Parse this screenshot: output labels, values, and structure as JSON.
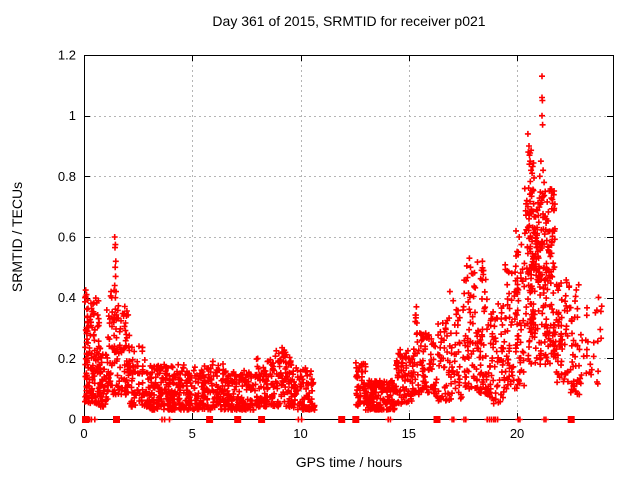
{
  "window": {
    "background": "#ffffff"
  },
  "chart_data": {
    "type": "scatter",
    "title": "Day 361 of 2015, SRMTID for receiver p021",
    "xlabel": "GPS time / hours",
    "ylabel": "SRMTID / TECUs",
    "xlim": [
      0,
      24.43
    ],
    "ylim": [
      0,
      1.2
    ],
    "xticks": [
      {
        "v": 0,
        "label": "0"
      },
      {
        "v": 5,
        "label": "5"
      },
      {
        "v": 10,
        "label": "10"
      },
      {
        "v": 15,
        "label": "15"
      },
      {
        "v": 20,
        "label": "20"
      }
    ],
    "yticks": [
      {
        "v": 0,
        "label": "0"
      },
      {
        "v": 0.2,
        "label": "0.2"
      },
      {
        "v": 0.4,
        "label": "0.4"
      },
      {
        "v": 0.6,
        "label": "0.6"
      },
      {
        "v": 0.8,
        "label": "0.8"
      },
      {
        "v": 1,
        "label": "1"
      },
      {
        "v": 1.2,
        "label": "1.2"
      }
    ],
    "grid": true,
    "legend": "none",
    "marker": "plus",
    "marker_color": "#ff0000",
    "grid_color": "#b5b5b5",
    "axis_color": "#000000",
    "series_name": "SRMTID",
    "notable_points": [
      [
        0.08,
        0.425
      ],
      [
        0.12,
        0.41
      ],
      [
        1.25,
        0.42
      ],
      [
        1.28,
        0.4
      ],
      [
        1.42,
        0.6
      ],
      [
        1.45,
        0.575
      ],
      [
        1.43,
        0.565
      ],
      [
        1.47,
        0.52
      ],
      [
        1.44,
        0.5
      ],
      [
        1.46,
        0.47
      ],
      [
        1.42,
        0.44
      ],
      [
        1.48,
        0.42
      ],
      [
        1.45,
        0.4
      ],
      [
        9.15,
        0.235
      ],
      [
        9.3,
        0.22
      ],
      [
        15.35,
        0.37
      ],
      [
        16.9,
        0.42
      ],
      [
        17.05,
        0.39
      ],
      [
        17.2,
        0.36
      ],
      [
        17.8,
        0.53
      ],
      [
        17.85,
        0.5
      ],
      [
        17.9,
        0.48
      ],
      [
        18.4,
        0.52
      ],
      [
        18.45,
        0.49
      ],
      [
        18.55,
        0.46
      ],
      [
        19.95,
        0.62
      ],
      [
        20.1,
        0.6
      ],
      [
        20.2,
        0.575
      ],
      [
        20.05,
        0.55
      ],
      [
        20.45,
        0.72
      ],
      [
        20.5,
        0.7
      ],
      [
        20.55,
        0.66
      ],
      [
        20.5,
        0.94
      ],
      [
        20.55,
        0.9
      ],
      [
        20.52,
        0.88
      ],
      [
        20.6,
        0.85
      ],
      [
        20.57,
        0.84
      ],
      [
        20.65,
        0.82
      ],
      [
        21.15,
        1.13
      ],
      [
        21.15,
        1.06
      ],
      [
        21.17,
        1.05
      ],
      [
        21.15,
        1.0
      ],
      [
        21.18,
        0.97
      ],
      [
        21.1,
        0.85
      ],
      [
        21.2,
        0.82
      ],
      [
        21.05,
        0.8
      ],
      [
        21.25,
        0.78
      ],
      [
        21.3,
        0.75
      ]
    ],
    "clusters": [
      [
        0.02,
        0.2,
        0.05,
        0.43,
        22,
        1.0
      ],
      [
        0.1,
        0.75,
        0.05,
        0.4,
        130,
        1.6
      ],
      [
        0.7,
        1.1,
        0.04,
        0.22,
        45,
        1.4
      ],
      [
        1.05,
        1.4,
        0.08,
        0.43,
        35,
        1.2
      ],
      [
        1.4,
        2.1,
        0.08,
        0.38,
        95,
        1.5
      ],
      [
        2.1,
        2.9,
        0.04,
        0.24,
        65,
        1.5
      ],
      [
        2.9,
        5.0,
        0.03,
        0.18,
        260,
        1.5
      ],
      [
        5.0,
        6.45,
        0.03,
        0.19,
        145,
        1.5
      ],
      [
        6.45,
        7.85,
        0.03,
        0.16,
        140,
        1.5
      ],
      [
        7.85,
        8.75,
        0.04,
        0.2,
        95,
        1.5
      ],
      [
        8.75,
        9.65,
        0.04,
        0.23,
        95,
        1.5
      ],
      [
        9.65,
        10.65,
        0.03,
        0.17,
        95,
        1.5
      ],
      [
        12.55,
        13.05,
        0.04,
        0.19,
        50,
        1.4
      ],
      [
        13.0,
        14.35,
        0.03,
        0.13,
        150,
        1.4
      ],
      [
        14.35,
        15.15,
        0.05,
        0.23,
        80,
        1.4
      ],
      [
        15.15,
        15.6,
        0.08,
        0.36,
        45,
        1.3
      ],
      [
        15.6,
        16.25,
        0.08,
        0.29,
        60,
        1.4
      ],
      [
        16.25,
        17.45,
        0.06,
        0.36,
        90,
        1.5
      ],
      [
        17.5,
        18.2,
        0.1,
        0.52,
        70,
        1.3
      ],
      [
        18.2,
        18.7,
        0.08,
        0.5,
        60,
        1.4
      ],
      [
        18.7,
        19.45,
        0.05,
        0.38,
        70,
        1.5
      ],
      [
        19.45,
        20.35,
        0.1,
        0.56,
        95,
        1.4
      ],
      [
        20.35,
        20.85,
        0.3,
        0.9,
        55,
        1.2
      ],
      [
        20.55,
        21.75,
        0.45,
        0.76,
        150,
        1.0
      ],
      [
        20.5,
        21.75,
        0.18,
        0.5,
        115,
        1.2
      ],
      [
        21.75,
        22.3,
        0.12,
        0.47,
        55,
        1.3
      ],
      [
        22.3,
        23.0,
        0.08,
        0.45,
        50,
        1.3
      ],
      [
        23.0,
        24.0,
        0.1,
        0.42,
        26,
        1.0
      ]
    ],
    "zero_squares": [
      0.07,
      1.5,
      5.8,
      7.1,
      8.2,
      11.9,
      12.55,
      16.3,
      22.5
    ],
    "zero_ticks": [
      0.25,
      0.34,
      0.5,
      3.6,
      3.72,
      3.95,
      9.9,
      10.05,
      14.05,
      14.15,
      17.0,
      17.08,
      17.55,
      17.63,
      18.62,
      18.72,
      18.82,
      18.92,
      19.0,
      19.1,
      20.05,
      20.13,
      21.25,
      21.33
    ],
    "seed": 361
  }
}
